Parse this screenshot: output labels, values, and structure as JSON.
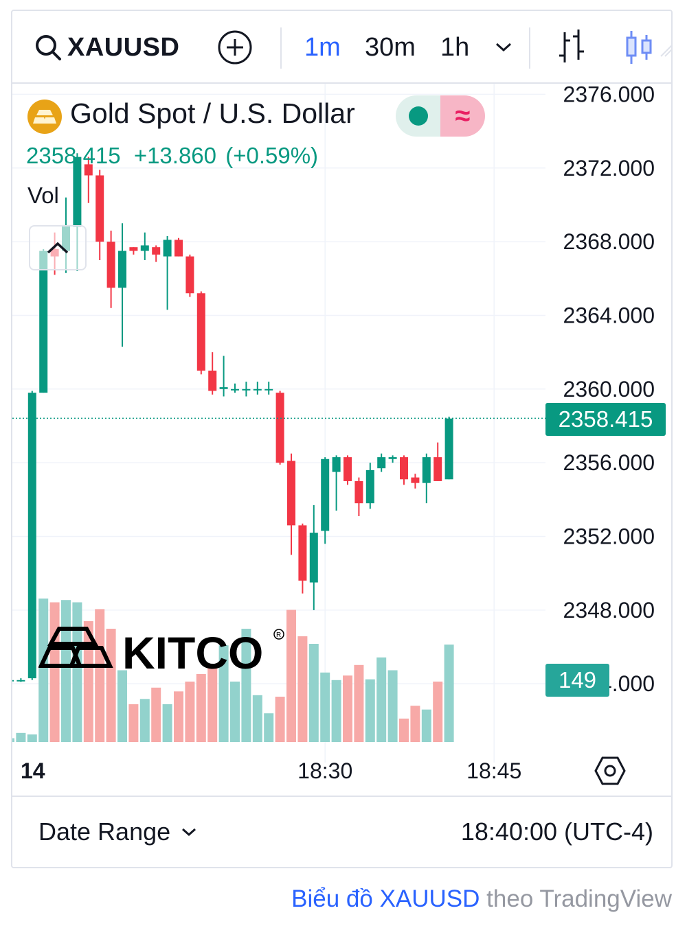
{
  "toolbar": {
    "symbol": "XAUUSD",
    "timeframes": [
      {
        "label": "1m",
        "active": true
      },
      {
        "label": "30m",
        "active": false
      },
      {
        "label": "1h",
        "active": false
      }
    ]
  },
  "legend": {
    "title": "Gold Spot / U.S. Dollar",
    "last": "2358.415",
    "change": "+13.860",
    "change_pct": "(+0.59%)",
    "vol_label": "Vol"
  },
  "price_tag": "2358.415",
  "volume_tag": "149",
  "watermark": "KITCO",
  "footer": {
    "date_range": "Date Range",
    "time": "18:40:00 (UTC-4)"
  },
  "attribution": {
    "link_text": "Biểu đồ XAUUSD",
    "rest_text": "theo TradingView"
  },
  "colors": {
    "up": "#089981",
    "down": "#f23645",
    "up_volume": "#92d2cc",
    "down_volume": "#f7a9a7",
    "accent": "#2962ff"
  },
  "chart_data": {
    "type": "candlestick",
    "title": "Gold Spot / U.S. Dollar",
    "interval": "1m",
    "y_ticks": [
      "2376.000",
      "2372.000",
      "2368.000",
      "2364.000",
      "2360.000",
      "2356.000",
      "2352.000",
      "2348.000",
      "2344.000"
    ],
    "x_ticks": [
      {
        "label": "14",
        "index": 0,
        "bold": true
      },
      {
        "label": "18:30",
        "index": 28
      },
      {
        "label": "18:45",
        "index": 43
      }
    ],
    "ylim": [
      2343.0,
      2376.5
    ],
    "last_price": 2358.415,
    "grid": true,
    "candles": [
      {
        "o": 2344.2,
        "h": 2344.3,
        "l": 2344.1,
        "c": 2344.2,
        "v": 5
      },
      {
        "o": 2344.2,
        "h": 2344.3,
        "l": 2344.1,
        "c": 2344.2,
        "v": 12
      },
      {
        "o": 2344.3,
        "h": 2359.9,
        "l": 2344.2,
        "c": 2359.8,
        "v": 10
      },
      {
        "o": 2359.8,
        "h": 2367.6,
        "l": 2359.8,
        "c": 2367.5,
        "v": 190
      },
      {
        "o": 2367.6,
        "h": 2368.5,
        "l": 2366.2,
        "c": 2367.2,
        "v": 185
      },
      {
        "o": 2367.5,
        "h": 2370.4,
        "l": 2366.3,
        "c": 2368.9,
        "v": 188
      },
      {
        "o": 2368.8,
        "h": 2372.8,
        "l": 2366.4,
        "c": 2372.6,
        "v": 185
      },
      {
        "o": 2372.2,
        "h": 2372.6,
        "l": 2370.1,
        "c": 2371.6,
        "v": 160
      },
      {
        "o": 2371.6,
        "h": 2371.9,
        "l": 2367.0,
        "c": 2368.0,
        "v": 176
      },
      {
        "o": 2368.0,
        "h": 2368.6,
        "l": 2364.4,
        "c": 2365.5,
        "v": 150
      },
      {
        "o": 2365.5,
        "h": 2369.0,
        "l": 2362.3,
        "c": 2367.5,
        "v": 95
      },
      {
        "o": 2367.7,
        "h": 2367.7,
        "l": 2367.3,
        "c": 2367.5,
        "v": 50
      },
      {
        "o": 2367.5,
        "h": 2368.5,
        "l": 2367.0,
        "c": 2367.8,
        "v": 57
      },
      {
        "o": 2367.7,
        "h": 2367.8,
        "l": 2366.9,
        "c": 2367.3,
        "v": 72
      },
      {
        "o": 2367.2,
        "h": 2368.3,
        "l": 2364.3,
        "c": 2368.1,
        "v": 50
      },
      {
        "o": 2368.1,
        "h": 2368.2,
        "l": 2367.2,
        "c": 2367.2,
        "v": 67
      },
      {
        "o": 2367.2,
        "h": 2367.3,
        "l": 2365.0,
        "c": 2365.2,
        "v": 80
      },
      {
        "o": 2365.2,
        "h": 2365.3,
        "l": 2360.8,
        "c": 2361.0,
        "v": 90
      },
      {
        "o": 2361.0,
        "h": 2362.0,
        "l": 2359.7,
        "c": 2359.9,
        "v": 100
      },
      {
        "o": 2360.0,
        "h": 2361.8,
        "l": 2359.6,
        "c": 2360.1,
        "v": 128
      },
      {
        "o": 2360.0,
        "h": 2360.3,
        "l": 2359.8,
        "c": 2360.0,
        "v": 80
      },
      {
        "o": 2360.0,
        "h": 2360.4,
        "l": 2359.6,
        "c": 2360.0,
        "v": 150
      },
      {
        "o": 2360.0,
        "h": 2360.4,
        "l": 2359.7,
        "c": 2360.0,
        "v": 62
      },
      {
        "o": 2360.0,
        "h": 2360.4,
        "l": 2359.7,
        "c": 2360.0,
        "v": 38
      },
      {
        "o": 2359.8,
        "h": 2359.9,
        "l": 2355.9,
        "c": 2356.0,
        "v": 60
      },
      {
        "o": 2356.1,
        "h": 2356.5,
        "l": 2351.0,
        "c": 2352.6,
        "v": 175
      },
      {
        "o": 2352.6,
        "h": 2352.7,
        "l": 2348.9,
        "c": 2349.6,
        "v": 140
      },
      {
        "o": 2349.5,
        "h": 2353.7,
        "l": 2348.0,
        "c": 2352.2,
        "v": 130
      },
      {
        "o": 2352.3,
        "h": 2356.3,
        "l": 2351.6,
        "c": 2356.2,
        "v": 92
      },
      {
        "o": 2355.5,
        "h": 2356.4,
        "l": 2353.4,
        "c": 2356.3,
        "v": 82
      },
      {
        "o": 2356.3,
        "h": 2356.4,
        "l": 2354.8,
        "c": 2355.0,
        "v": 88
      },
      {
        "o": 2355.0,
        "h": 2355.2,
        "l": 2353.1,
        "c": 2353.8,
        "v": 102
      },
      {
        "o": 2353.8,
        "h": 2356.0,
        "l": 2353.5,
        "c": 2355.6,
        "v": 83
      },
      {
        "o": 2355.7,
        "h": 2356.5,
        "l": 2355.5,
        "c": 2356.3,
        "v": 112
      },
      {
        "o": 2356.2,
        "h": 2356.4,
        "l": 2356.0,
        "c": 2356.3,
        "v": 95
      },
      {
        "o": 2356.3,
        "h": 2356.4,
        "l": 2354.8,
        "c": 2355.1,
        "v": 31
      },
      {
        "o": 2355.2,
        "h": 2355.4,
        "l": 2354.6,
        "c": 2354.9,
        "v": 48
      },
      {
        "o": 2354.9,
        "h": 2356.5,
        "l": 2353.8,
        "c": 2356.3,
        "v": 43
      },
      {
        "o": 2356.3,
        "h": 2357.1,
        "l": 2355.0,
        "c": 2355.0,
        "v": 80
      },
      {
        "o": 2355.1,
        "h": 2358.5,
        "l": 2355.1,
        "c": 2358.4,
        "v": 129
      }
    ]
  }
}
